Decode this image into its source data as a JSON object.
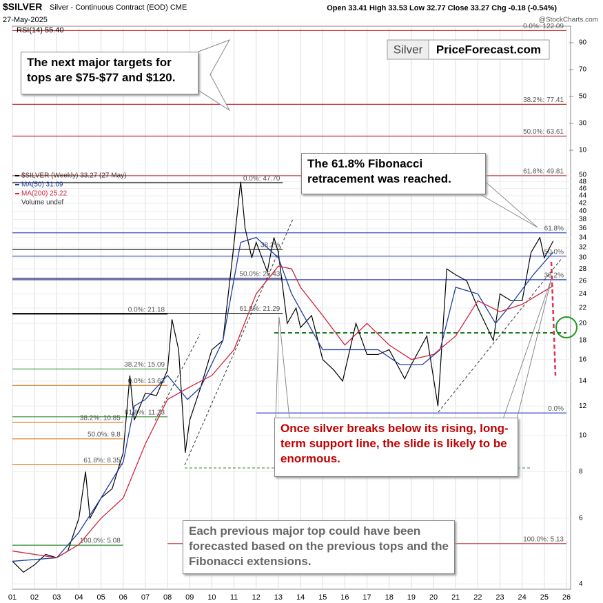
{
  "chart_data": {
    "type": "line",
    "title": "$SILVER",
    "subtitle": "Silver - Continuous Contract (EOD) CME",
    "date": "27-May-2025",
    "quote": "Open 33.41  High 33.53  Low 32.77  Close 33.27  Chg -0.18 (-0.54%)",
    "source": "@StockCharts.com",
    "rsi_label": "RSI(14) 55.40",
    "rsi_lim": [
      0,
      100
    ],
    "rsi_ticks": [
      90,
      70,
      50,
      30,
      10
    ],
    "logo": [
      "Silver",
      "PriceForecast.com"
    ],
    "volume_label": "Volume undef",
    "log_scale": true,
    "grid": true,
    "xlim": [
      2001,
      2026
    ],
    "xticks": [
      {
        "value": 2001,
        "label": "01"
      },
      {
        "value": 2002,
        "label": "02"
      },
      {
        "value": 2003,
        "label": "03"
      },
      {
        "value": 2004,
        "label": "04"
      },
      {
        "value": 2005,
        "label": "05"
      },
      {
        "value": 2006,
        "label": "06"
      },
      {
        "value": 2007,
        "label": "07"
      },
      {
        "value": 2008,
        "label": "08"
      },
      {
        "value": 2009,
        "label": "09"
      },
      {
        "value": 2010,
        "label": "10"
      },
      {
        "value": 2011,
        "label": "11"
      },
      {
        "value": 2012,
        "label": "12"
      },
      {
        "value": 2013,
        "label": "13"
      },
      {
        "value": 2014,
        "label": "14"
      },
      {
        "value": 2015,
        "label": "15"
      },
      {
        "value": 2016,
        "label": "16"
      },
      {
        "value": 2017,
        "label": "17"
      },
      {
        "value": 2018,
        "label": "18"
      },
      {
        "value": 2019,
        "label": "19"
      },
      {
        "value": 2020,
        "label": "20"
      },
      {
        "value": 2021,
        "label": "21"
      },
      {
        "value": 2022,
        "label": "22"
      },
      {
        "value": 2023,
        "label": "23"
      },
      {
        "value": 2024,
        "label": "24"
      },
      {
        "value": 2025,
        "label": "25"
      },
      {
        "value": 2026,
        "label": "26"
      }
    ],
    "ylim": [
      3.87,
      124.4
    ],
    "yticks": [
      4,
      6,
      8,
      10,
      12,
      14,
      16,
      18,
      20,
      22,
      24,
      26,
      28,
      30,
      32,
      34,
      36,
      38,
      40,
      42,
      44,
      46,
      48,
      50
    ],
    "series": [
      {
        "name": "$SILVER (Weekly) 33.27 (27 May)",
        "color": "#000000",
        "x": [
          2001.0,
          2001.5,
          2002.0,
          2002.5,
          2003.0,
          2003.5,
          2004.0,
          2004.3,
          2004.5,
          2005.0,
          2005.5,
          2006.0,
          2006.3,
          2006.5,
          2007.0,
          2007.5,
          2008.0,
          2008.2,
          2008.5,
          2008.8,
          2009.0,
          2009.5,
          2010.0,
          2010.5,
          2010.9,
          2011.3,
          2011.5,
          2011.8,
          2012.0,
          2012.5,
          2012.8,
          2013.0,
          2013.4,
          2013.8,
          2014.0,
          2014.5,
          2015.0,
          2015.5,
          2015.9,
          2016.5,
          2017.0,
          2017.5,
          2018.0,
          2018.7,
          2019.0,
          2019.7,
          2020.2,
          2020.6,
          2021.0,
          2021.5,
          2022.0,
          2022.7,
          2023.0,
          2023.5,
          2024.0,
          2024.4,
          2024.8,
          2025.0,
          2025.4
        ],
        "values": [
          4.6,
          4.3,
          4.5,
          4.8,
          4.7,
          4.9,
          6.0,
          8.0,
          6.0,
          6.8,
          7.2,
          9.0,
          14.5,
          11.0,
          13.0,
          12.8,
          15.0,
          20.5,
          17.0,
          9.0,
          11.0,
          13.5,
          17.0,
          18.0,
          29.0,
          48.0,
          36.0,
          30.0,
          33.0,
          27.5,
          34.0,
          31.0,
          20.0,
          22.0,
          19.5,
          21.0,
          16.0,
          15.0,
          14.0,
          20.0,
          16.5,
          16.5,
          17.0,
          14.2,
          15.5,
          18.5,
          12.0,
          28.0,
          27.0,
          26.0,
          22.0,
          18.0,
          24.0,
          23.0,
          23.0,
          31.0,
          34.0,
          30.0,
          33.27
        ]
      },
      {
        "name": "MA(50) 31.09",
        "color": "#1f3fa0",
        "x": [
          2001.0,
          2003.0,
          2004.0,
          2005.0,
          2006.0,
          2006.5,
          2007.0,
          2008.0,
          2008.9,
          2009.5,
          2010.5,
          2011.3,
          2012.0,
          2013.0,
          2013.6,
          2015.0,
          2016.5,
          2017.5,
          2018.5,
          2019.5,
          2020.3,
          2021.0,
          2022.0,
          2022.8,
          2023.5,
          2024.5,
          2025.4
        ],
        "values": [
          4.6,
          4.7,
          5.5,
          6.8,
          8.5,
          12.0,
          12.5,
          14.5,
          12.5,
          13.5,
          18.0,
          33.0,
          34.0,
          30.0,
          24.0,
          17.0,
          17.0,
          17.0,
          15.5,
          15.5,
          17.0,
          25.0,
          24.0,
          20.0,
          22.5,
          27.0,
          31.09
        ]
      },
      {
        "name": "MA(200) 25.22",
        "color": "#d0233c",
        "x": [
          2001.0,
          2003.0,
          2004.0,
          2005.0,
          2006.0,
          2007.0,
          2008.0,
          2009.0,
          2010.0,
          2011.0,
          2012.0,
          2013.0,
          2013.6,
          2014.0,
          2015.0,
          2016.0,
          2017.0,
          2018.0,
          2019.0,
          2020.0,
          2021.0,
          2022.0,
          2023.0,
          2024.0,
          2025.4
        ],
        "values": [
          4.9,
          4.7,
          5.1,
          6.0,
          6.8,
          9.5,
          12.5,
          13.5,
          14.5,
          17.0,
          24.0,
          28.5,
          28.0,
          25.0,
          21.0,
          17.5,
          20.0,
          17.5,
          16.0,
          16.5,
          18.5,
          23.0,
          21.5,
          22.5,
          25.22
        ]
      }
    ],
    "levels": [
      {
        "label": "0.0%: 122.09",
        "value": 122.09,
        "color": "#c0282d",
        "x": [
          2001,
          2026
        ]
      },
      {
        "label": "38.2%: 77.41",
        "value": 77.41,
        "color": "#c0282d",
        "x": [
          2001,
          2026
        ]
      },
      {
        "label": "50.0%: 63.61",
        "value": 63.61,
        "color": "#c0282d",
        "x": [
          2001,
          2026
        ]
      },
      {
        "label": "61.8%: 49.81",
        "value": 49.81,
        "color": "#c0282d",
        "x": [
          2001,
          2026
        ]
      },
      {
        "label": "0.0%: 47.70",
        "value": 47.7,
        "color": "#000000",
        "x": [
          2001,
          2013.2
        ]
      },
      {
        "label": "38.2%",
        "value": 31.6,
        "color": "#000000",
        "x": [
          2001,
          2013.2
        ]
      },
      {
        "label": "50.0%: 26.43",
        "value": 26.43,
        "color": "#000000",
        "x": [
          2001,
          2013.2
        ]
      },
      {
        "label": "61.8%: 21.29",
        "value": 21.29,
        "color": "#000000",
        "x": [
          2001,
          2013.2
        ]
      },
      {
        "label": "0.0%: 21.18",
        "value": 21.18,
        "color": "#000000",
        "x": [
          2001,
          2008.0
        ]
      },
      {
        "label": "61.8%",
        "value": 35.0,
        "color": "#2a3fc0",
        "x": [
          2001,
          2026
        ]
      },
      {
        "label": "50.0%",
        "value": 30.3,
        "color": "#2a3fc0",
        "x": [
          2001,
          2026
        ]
      },
      {
        "label": "38.2%",
        "value": 26.2,
        "color": "#2a3fc0",
        "x": [
          2001,
          2026
        ]
      },
      {
        "label": "0.0%",
        "value": 11.5,
        "color": "#2a3fc0",
        "x": [
          2012.0,
          2026
        ]
      },
      {
        "label": "38.2%: 15.09",
        "value": 15.09,
        "color": "#2e8b2e",
        "x": [
          2001,
          2008.0
        ]
      },
      {
        "label": "0.0%: 13.63",
        "value": 13.63,
        "color": "#e07a20",
        "x": [
          2001,
          2008.0
        ]
      },
      {
        "label": "61.8%: 11.23",
        "value": 11.23,
        "color": "#2e8b2e",
        "x": [
          2001,
          2008.0
        ]
      },
      {
        "label": "38.2%: 10.85",
        "value": 10.85,
        "color": "#e07a20",
        "x": [
          2001,
          2006.0
        ]
      },
      {
        "label": "50.0%: 9.8",
        "value": 9.8,
        "color": "#e07a20",
        "x": [
          2001,
          2006.0
        ]
      },
      {
        "label": "61.8%: 8.35",
        "value": 8.35,
        "color": "#e07a20",
        "x": [
          2001,
          2006.0
        ]
      },
      {
        "label": "100.0%: 5.08",
        "value": 5.08,
        "color": "#2e8b2e",
        "x": [
          2001,
          2006.0
        ]
      },
      {
        "label": "100.0%: 5.13",
        "value": 5.13,
        "color": "#c0282d",
        "x": [
          2008.0,
          2026
        ]
      }
    ],
    "annotations": [
      "The next major targets for tops are $75-$77 and $120.",
      "The 61.8% Fibonacci retracement was reached.",
      "Once silver breaks below its rising, long-term support line, the slide is likely to be enormous.",
      "Each previous major top could have been forecasted based on the previous tops and the Fibonacci extensions."
    ]
  }
}
